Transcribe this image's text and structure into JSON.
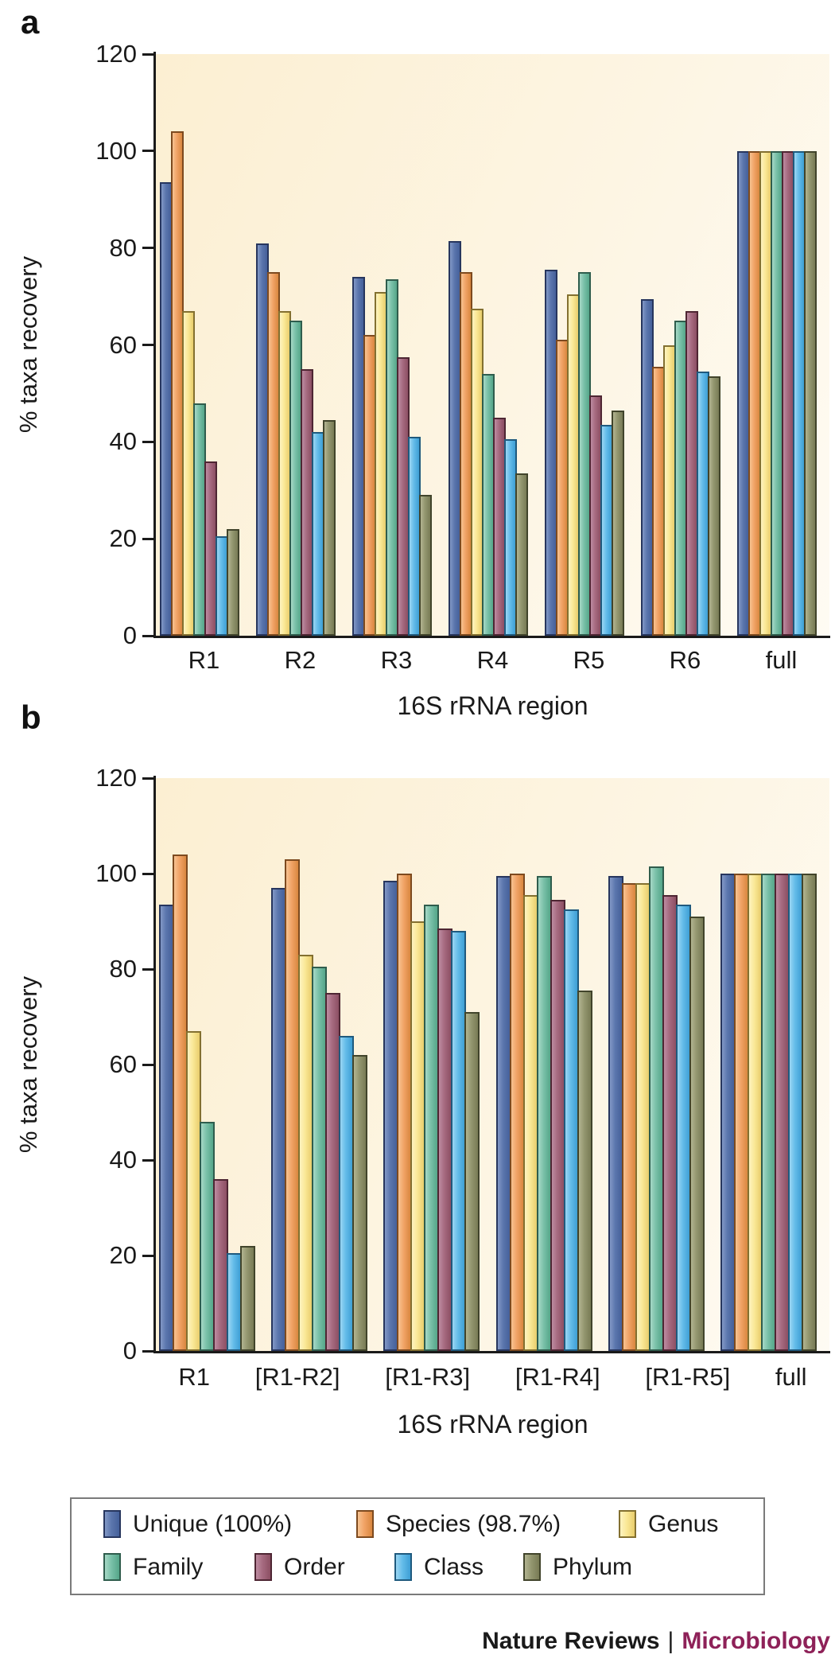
{
  "figure_title": "16S rRNA taxa recovery bar charts",
  "panel_a_letter": "a",
  "panel_b_letter": "b",
  "colors": {
    "axis": "#1a1a1a",
    "text": "#1a1a1a",
    "plot_bg_start": "#fcefd2",
    "plot_bg_end": "#fefbf3",
    "legend_border": "#7a7a7a",
    "footer_brand": "#8e2158",
    "series": [
      {
        "name": "Unique (100%)",
        "fill": "#5b76ad",
        "light": "#8298c6",
        "dark": "#45609a",
        "border": "#27365e"
      },
      {
        "name": "Species (98.7%)",
        "fill": "#f1a366",
        "light": "#f7c391",
        "dark": "#d9873f",
        "border": "#7d4a1f"
      },
      {
        "name": "Genus",
        "fill": "#fae896",
        "light": "#fdf3c0",
        "dark": "#e8cd6c",
        "border": "#837030"
      },
      {
        "name": "Family",
        "fill": "#79c0a8",
        "light": "#a6d8c6",
        "dark": "#55a689",
        "border": "#2f5d4d"
      },
      {
        "name": "Order",
        "fill": "#a66a80",
        "light": "#bd8ca1",
        "dark": "#8c4f63",
        "border": "#4e2633"
      },
      {
        "name": "Class",
        "fill": "#64bce9",
        "light": "#9bd6f3",
        "dark": "#3e9fd5",
        "border": "#1f5a7e"
      },
      {
        "name": "Phylum",
        "fill": "#93966f",
        "light": "#b2b491",
        "dark": "#787b55",
        "border": "#41442b"
      }
    ]
  },
  "chart_data": [
    {
      "panel": "a",
      "type": "bar",
      "xlabel": "16S rRNA region",
      "ylabel": "% taxa recovery",
      "ylim": [
        0,
        120
      ],
      "ytick_step": 20,
      "yticks": [
        0,
        20,
        40,
        60,
        80,
        100,
        120
      ],
      "grid": false,
      "legend_position": "shared-bottom",
      "categories": [
        "R1",
        "R2",
        "R3",
        "R4",
        "R5",
        "R6",
        "full"
      ],
      "series": [
        {
          "name": "Unique (100%)",
          "values": [
            93.5,
            81,
            74,
            81.5,
            75.5,
            69.5,
            100
          ]
        },
        {
          "name": "Species (98.7%)",
          "values": [
            104,
            75,
            62,
            75,
            61,
            55.5,
            100
          ]
        },
        {
          "name": "Genus",
          "values": [
            67,
            67,
            71,
            67.5,
            70.5,
            60,
            100
          ]
        },
        {
          "name": "Family",
          "values": [
            48,
            65,
            73.5,
            54,
            75,
            65,
            100
          ]
        },
        {
          "name": "Order",
          "values": [
            36,
            55,
            57.5,
            45,
            49.5,
            67,
            100
          ]
        },
        {
          "name": "Class",
          "values": [
            20.5,
            42,
            41,
            40.5,
            43.5,
            54.5,
            100
          ]
        },
        {
          "name": "Phylum",
          "values": [
            22,
            44.5,
            29,
            33.5,
            46.5,
            53.5,
            100
          ]
        }
      ]
    },
    {
      "panel": "b",
      "type": "bar",
      "xlabel": "16S rRNA region",
      "ylabel": "% taxa recovery",
      "ylim": [
        0,
        120
      ],
      "ytick_step": 20,
      "yticks": [
        0,
        20,
        40,
        60,
        80,
        100,
        120
      ],
      "grid": false,
      "legend_position": "shared-bottom",
      "categories": [
        "R1",
        "[R1-R2]",
        "[R1-R3]",
        "[R1-R4]",
        "[R1-R5]",
        "full"
      ],
      "series": [
        {
          "name": "Unique (100%)",
          "values": [
            93.5,
            97,
            98.5,
            99.5,
            99.5,
            100
          ]
        },
        {
          "name": "Species (98.7%)",
          "values": [
            104,
            103,
            100,
            100,
            98,
            100
          ]
        },
        {
          "name": "Genus",
          "values": [
            67,
            83,
            90,
            95.5,
            98,
            100
          ]
        },
        {
          "name": "Family",
          "values": [
            48,
            80.5,
            93.5,
            99.5,
            101.5,
            100
          ]
        },
        {
          "name": "Order",
          "values": [
            36,
            75,
            88.5,
            94.5,
            95.5,
            100
          ]
        },
        {
          "name": "Class",
          "values": [
            20.5,
            66,
            88,
            92.5,
            93.5,
            100
          ]
        },
        {
          "name": "Phylum",
          "values": [
            22,
            62,
            71,
            75.5,
            91,
            100
          ]
        }
      ]
    }
  ],
  "legend": {
    "items": [
      {
        "label": "Unique (100%)"
      },
      {
        "label": "Species (98.7%)"
      },
      {
        "label": "Genus"
      },
      {
        "label": "Family"
      },
      {
        "label": "Order"
      },
      {
        "label": "Class"
      },
      {
        "label": "Phylum"
      }
    ]
  },
  "footer": {
    "journal": "Nature Reviews",
    "separator": "|",
    "brand": "Microbiology"
  }
}
